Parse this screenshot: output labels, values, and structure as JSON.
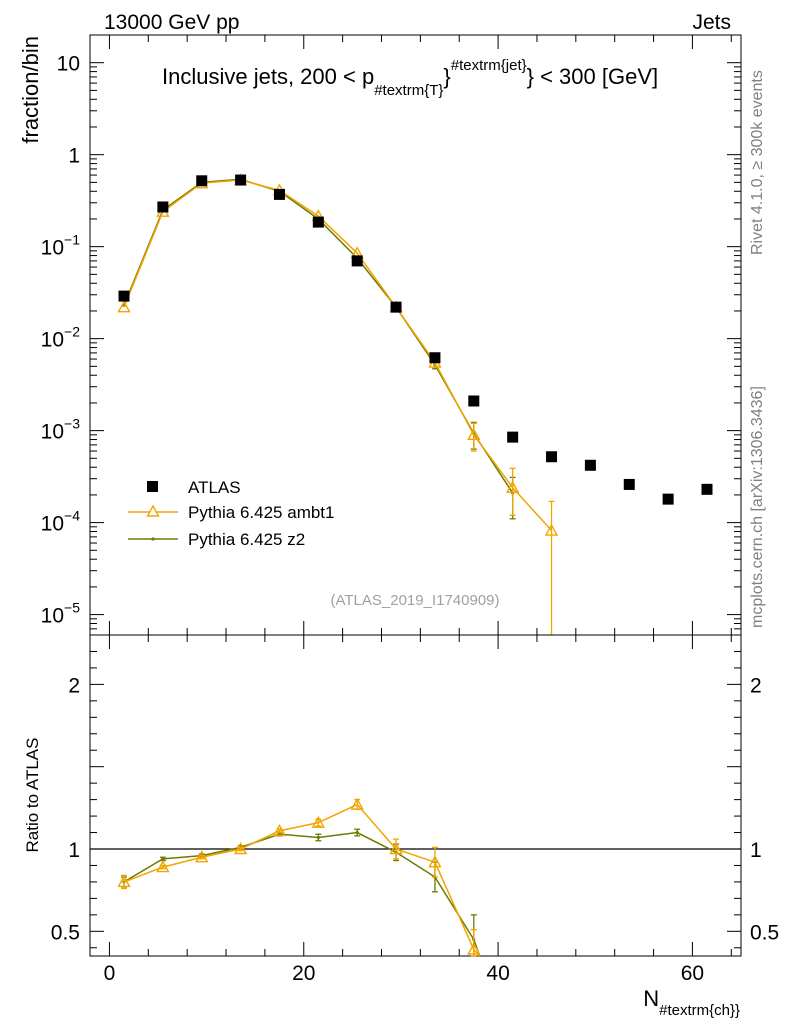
{
  "header": {
    "left": "13000 GeV pp",
    "right": "Jets",
    "side_top": "Rivet 4.1.0, ≥ 300k events",
    "side_bottom": "mcplots.cern.ch [arXiv:1306.3436]"
  },
  "colors": {
    "atlas": "#000000",
    "ambt1": "#f0a500",
    "z2": "#6e7a00",
    "ref_line": "#000000"
  },
  "chart_data": [
    {
      "type": "scatter",
      "title_main": "Inclusive jets, 200 < p",
      "title_sub": "#textrm{T}",
      "title_sup": "#textrm{jet}",
      "title_tail": "} < 300 [GeV]",
      "ylabel": "fraction/bin",
      "yscale": "log",
      "xlim": [
        -2,
        65
      ],
      "ylim": [
        6e-06,
        20
      ],
      "yticks": [
        {
          "v": 10,
          "base": "10",
          "exp": ""
        },
        {
          "v": 1,
          "base": "1",
          "exp": ""
        },
        {
          "v": 0.1,
          "base": "10",
          "exp": "−1"
        },
        {
          "v": 0.01,
          "base": "10",
          "exp": "−2"
        },
        {
          "v": 0.001,
          "base": "10",
          "exp": "−3"
        },
        {
          "v": 0.0001,
          "base": "10",
          "exp": "−4"
        },
        {
          "v": 1e-05,
          "base": "10",
          "exp": "−5"
        }
      ],
      "watermark": "(ATLAS_2019_I1740909)",
      "legend": {
        "position": "lower-left",
        "entries": [
          "ATLAS",
          "Pythia 6.425 ambt1",
          "Pythia 6.425 z2"
        ]
      },
      "series": [
        {
          "name": "ATLAS",
          "marker": "square",
          "x": [
            1.5,
            5.5,
            9.5,
            13.5,
            17.5,
            21.5,
            25.5,
            29.5,
            33.5,
            37.5,
            41.5,
            45.5,
            49.5,
            53.5,
            57.5,
            61.5
          ],
          "y": [
            0.029,
            0.27,
            0.52,
            0.53,
            0.37,
            0.185,
            0.07,
            0.022,
            0.0062,
            0.0021,
            0.00085,
            0.00052,
            0.00042,
            0.00026,
            0.00018,
            0.00023
          ]
        },
        {
          "name": "Pythia 6.425 ambt1",
          "marker": "triangle",
          "x": [
            1.5,
            5.5,
            9.5,
            13.5,
            17.5,
            21.5,
            25.5,
            29.5,
            33.5,
            37.5,
            41.5,
            45.5
          ],
          "y": [
            0.022,
            0.24,
            0.49,
            0.53,
            0.41,
            0.215,
            0.085,
            0.022,
            0.0055,
            0.0009,
            0.00024,
            8.2e-05
          ],
          "err_low": [
            0,
            0,
            0,
            0,
            0,
            0,
            0,
            0,
            0.0006,
            0.0003,
            0.00012,
            8.2e-05
          ],
          "err_high": [
            0,
            0,
            0,
            0,
            0,
            0,
            0,
            0,
            0.0006,
            0.0003,
            0.00015,
            8.8e-05
          ]
        },
        {
          "name": "Pythia 6.425 z2",
          "marker": "dot",
          "x": [
            1.5,
            5.5,
            9.5,
            13.5,
            17.5,
            21.5,
            25.5,
            29.5,
            33.5,
            37.5,
            41.5
          ],
          "y": [
            0.023,
            0.25,
            0.5,
            0.54,
            0.4,
            0.2,
            0.075,
            0.022,
            0.0052,
            0.00093,
            0.00021
          ],
          "err_low": [
            0,
            0,
            0,
            0,
            0,
            0,
            0,
            0,
            0.0005,
            0.0003,
            0.0001
          ],
          "err_high": [
            0,
            0,
            0,
            0,
            0,
            0,
            0,
            0,
            0.0005,
            0.0003,
            0.0001
          ]
        }
      ]
    },
    {
      "type": "line",
      "ylabel": "Ratio to ATLAS",
      "xlabel_main": "N",
      "xlabel_sub": "#textrm{ch}}",
      "xlim": [
        -2,
        65
      ],
      "ylim": [
        0.35,
        2.3
      ],
      "yticks": [
        "0.5",
        "1",
        "2"
      ],
      "xticks": [
        "0",
        "20",
        "40",
        "60"
      ],
      "reference": 1,
      "series": [
        {
          "name": "Pythia 6.425 ambt1",
          "x": [
            1.5,
            5.5,
            9.5,
            13.5,
            17.5,
            21.5,
            25.5,
            29.5,
            33.5,
            37.5
          ],
          "y": [
            0.8,
            0.89,
            0.95,
            1.0,
            1.11,
            1.16,
            1.27,
            1.0,
            0.92,
            0.39
          ],
          "err": [
            0.04,
            0.01,
            0.01,
            0.01,
            0.01,
            0.02,
            0.03,
            0.06,
            0.09,
            0.12
          ]
        },
        {
          "name": "Pythia 6.425 z2",
          "x": [
            1.5,
            5.5,
            9.5,
            13.5,
            17.5,
            21.5,
            25.5,
            29.5,
            33.5,
            37.5
          ],
          "y": [
            0.8,
            0.94,
            0.96,
            1.01,
            1.09,
            1.07,
            1.1,
            0.98,
            0.83,
            0.45
          ],
          "err": [
            0.03,
            0.01,
            0.01,
            0.01,
            0.01,
            0.02,
            0.02,
            0.05,
            0.09,
            0.15
          ]
        }
      ]
    }
  ]
}
